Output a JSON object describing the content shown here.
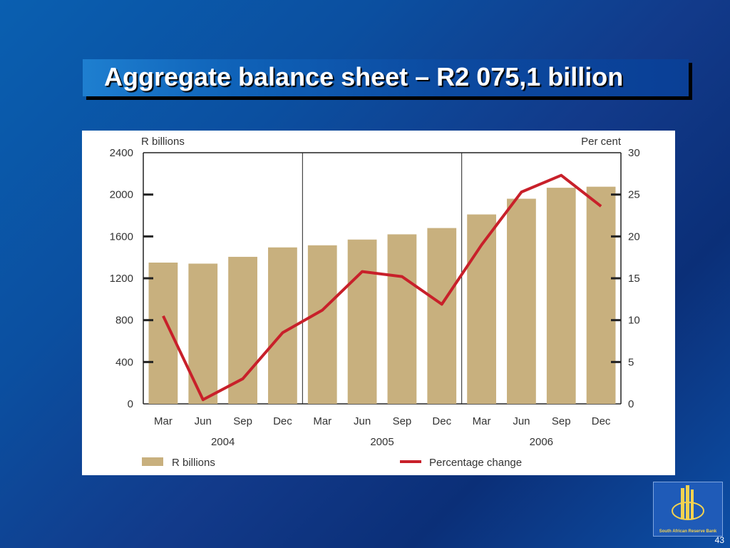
{
  "slide": {
    "title": "Aggregate balance sheet – R2 075,1 billion",
    "page_number": "43",
    "logo_text": "South African Reserve Bank"
  },
  "colors": {
    "bar": "#c8b07e",
    "line": "#c8202a",
    "background": "#0b4fa0",
    "logo_gold": "#f3d250"
  },
  "chart_data": {
    "type": "bar",
    "categories": [
      "Mar",
      "Jun",
      "Sep",
      "Dec",
      "Mar",
      "Jun",
      "Sep",
      "Dec",
      "Mar",
      "Jun",
      "Sep",
      "Dec"
    ],
    "year_groups": [
      {
        "label": "2004",
        "start": 0,
        "end": 3
      },
      {
        "label": "2005",
        "start": 4,
        "end": 7
      },
      {
        "label": "2006",
        "start": 8,
        "end": 11
      }
    ],
    "series": [
      {
        "name": "R billions",
        "type": "bar",
        "axis": "left",
        "values": [
          1350,
          1340,
          1405,
          1495,
          1515,
          1570,
          1620,
          1680,
          1810,
          1960,
          2065,
          2075
        ]
      },
      {
        "name": "Percentage change",
        "type": "line",
        "axis": "right",
        "values": [
          10.5,
          0.5,
          3.0,
          8.5,
          11.2,
          15.8,
          15.2,
          11.9,
          19.0,
          25.3,
          27.3,
          23.6
        ]
      }
    ],
    "ylabel_left": "R billions",
    "ylabel_right": "Per cent",
    "ylim_left": [
      0,
      2400
    ],
    "ylim_right": [
      0,
      30
    ],
    "yticks_left": [
      "0",
      "400",
      "800",
      "1200",
      "1600",
      "2000",
      "2400"
    ],
    "yticks_right": [
      "0",
      "5",
      "10",
      "15",
      "20",
      "25",
      "30"
    ],
    "legend": [
      "R billions",
      "Percentage change"
    ],
    "legend_position": "bottom"
  }
}
